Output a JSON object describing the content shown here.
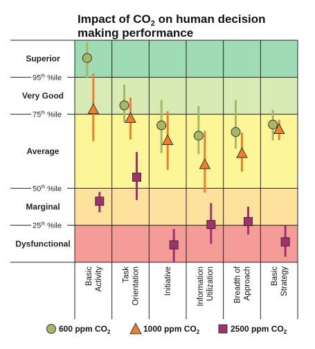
{
  "chart_data": {
    "type": "scatter",
    "title": "Impact of CO2 on human decision making performance",
    "title_lines": [
      {
        "pre": "Impact of CO",
        "sub": "2",
        "post": " on human decision"
      },
      {
        "pre": "making performance",
        "sub": "",
        "post": ""
      }
    ],
    "y_scale_note": "ordinal performance scale from bottom (0) to top (6): Dysfunctional 0-1, Marginal 1-2, Average 2-4, Very Good 4-5, Superior 5-6",
    "ylim": [
      0,
      6
    ],
    "bands": [
      {
        "label": "Dysfunctional",
        "from": 0,
        "to": 1,
        "color": "#f59b98"
      },
      {
        "label": "Marginal",
        "from": 1,
        "to": 2,
        "color": "#fde19d"
      },
      {
        "label": "Average",
        "from": 2,
        "to": 4,
        "color": "#fdf699"
      },
      {
        "label": "Very Good",
        "from": 4,
        "to": 5,
        "color": "#d9ebb4"
      },
      {
        "label": "Superior",
        "from": 5,
        "to": 6,
        "color": "#9fdbb5"
      }
    ],
    "percentile_ticks": [
      {
        "num": "95",
        "sup": "th",
        "suffix": " %ile",
        "y": 5
      },
      {
        "num": "75",
        "sup": "th",
        "suffix": " %ile",
        "y": 4
      },
      {
        "num": "50",
        "sup": "th",
        "suffix": " %ile",
        "y": 2
      },
      {
        "num": "25",
        "sup": "th",
        "suffix": " %ile",
        "y": 1
      }
    ],
    "categories": [
      [
        "Basic",
        "Activity"
      ],
      [
        "Task",
        "Orientation"
      ],
      [
        "Initiative"
      ],
      [
        "Information",
        "Utilization"
      ],
      [
        "Breadth of",
        "Approach"
      ],
      [
        "Basic",
        "Strategy"
      ]
    ],
    "series": [
      {
        "name_pre": "600 ppm CO",
        "name_sub": "2",
        "marker": "circle",
        "color": "#a7b864",
        "errorColor": "#a7b864",
        "points": [
          {
            "y": 5.52,
            "lo": 4.98,
            "hi": 5.95
          },
          {
            "y": 4.24,
            "lo": 3.78,
            "hi": 4.8
          },
          {
            "y": 3.7,
            "lo": 2.95,
            "hi": 4.38
          },
          {
            "y": 3.42,
            "lo": 2.92,
            "hi": 4.22
          },
          {
            "y": 3.52,
            "lo": 3.07,
            "hi": 4.38
          },
          {
            "y": 3.72,
            "lo": 3.29,
            "hi": 4.12
          }
        ]
      },
      {
        "name_pre": "1000 ppm CO",
        "name_sub": "2",
        "marker": "triangle",
        "color": "#f07e2a",
        "errorColor": "#f07e2a",
        "points": [
          {
            "y": 4.14,
            "lo": 3.27,
            "hi": 5.1
          },
          {
            "y": 3.9,
            "lo": 3.32,
            "hi": 4.45
          },
          {
            "y": 3.3,
            "lo": 2.5,
            "hi": 4.08
          },
          {
            "y": 2.65,
            "lo": 1.88,
            "hi": 3.55
          },
          {
            "y": 2.95,
            "lo": 2.45,
            "hi": 3.5
          },
          {
            "y": 3.6,
            "lo": 3.3,
            "hi": 3.85
          }
        ]
      },
      {
        "name_pre": "2500 ppm CO",
        "name_sub": "2",
        "marker": "square",
        "color": "#a0306e",
        "errorColor": "#a0306e",
        "points": [
          {
            "y": 1.65,
            "lo": 1.35,
            "hi": 1.9
          },
          {
            "y": 2.3,
            "lo": 1.68,
            "hi": 2.98
          },
          {
            "y": 0.47,
            "lo": 0.0,
            "hi": 0.9
          },
          {
            "y": 1.02,
            "lo": 0.5,
            "hi": 1.6
          },
          {
            "y": 1.1,
            "lo": 0.75,
            "hi": 1.5
          },
          {
            "y": 0.55,
            "lo": 0.15,
            "hi": 1.0
          }
        ]
      }
    ]
  }
}
